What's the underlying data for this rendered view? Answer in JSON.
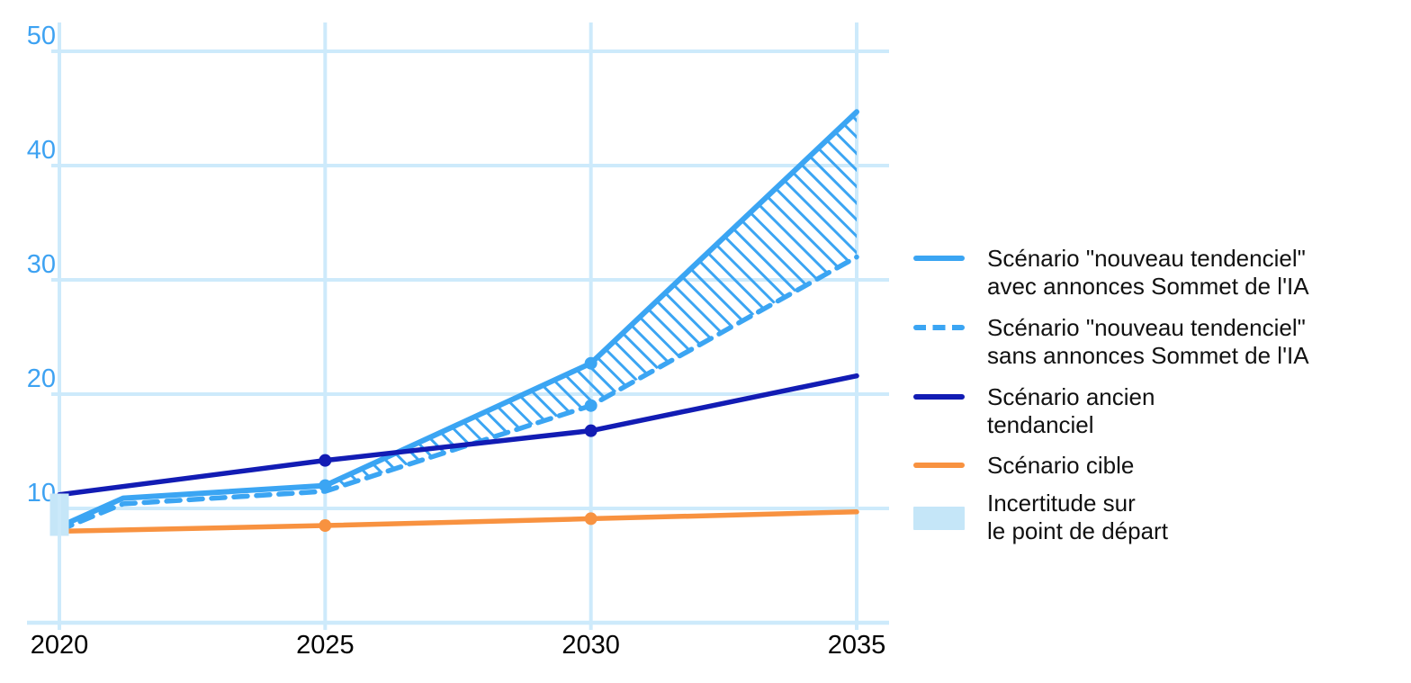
{
  "colors": {
    "light_blue": "#3BA5F3",
    "navy": "#121CB4",
    "orange": "#F89240",
    "grid": "#CDEAFB",
    "pale_fill": "#C5E6F8",
    "y_tick_label": "#3DA2F2",
    "x_tick_label": "#000000",
    "legend_text": "#111111"
  },
  "legend": {
    "items": [
      {
        "key": "nouveau-avec",
        "swatch": "solid",
        "color": "#3BA5F3",
        "line1": "Scénario \"nouveau tendenciel\"",
        "line2": "avec annonces Sommet de l'IA"
      },
      {
        "key": "nouveau-sans",
        "swatch": "dashed",
        "color": "#3BA5F3",
        "line1": "Scénario \"nouveau tendenciel\"",
        "line2": "sans annonces Sommet de l'IA"
      },
      {
        "key": "ancien",
        "swatch": "solid",
        "color": "#121CB4",
        "line1": "Scénario ancien",
        "line2": "tendanciel"
      },
      {
        "key": "cible",
        "swatch": "solid",
        "color": "#F89240",
        "line1": "Scénario cible"
      },
      {
        "key": "incertitude",
        "swatch": "rect",
        "color": "#C5E6F8",
        "line1": "Incertitude sur",
        "line2": "le point de départ"
      }
    ]
  },
  "chart_data": {
    "type": "line",
    "title": "",
    "xlabel": "",
    "ylabel": "",
    "xlim": [
      2020,
      2035
    ],
    "ylim": [
      0,
      50
    ],
    "grid": true,
    "legend_position": "right",
    "x_ticks": [
      2020,
      2025,
      2030,
      2035
    ],
    "x_tick_labels": [
      "2020",
      "2025",
      "2030",
      "2035"
    ],
    "y_ticks": [
      10,
      20,
      30,
      40,
      50
    ],
    "y_tick_labels": [
      "10",
      "20",
      "30",
      "40",
      "50"
    ],
    "series": [
      {
        "name": "Scénario \"nouveau tendenciel\" avec annonces Sommet de l'IA",
        "style": "solid",
        "color": "#3BA5F3",
        "width": 6,
        "x": [
          2020,
          2021.2,
          2025,
          2030,
          2035
        ],
        "y": [
          8.4,
          10.9,
          12,
          22.7,
          44.7
        ],
        "marker_x": [
          2025,
          2030
        ]
      },
      {
        "name": "Scénario \"nouveau tendenciel\" sans annonces Sommet de l'IA",
        "style": "dashed",
        "color": "#3BA5F3",
        "width": 5.5,
        "x": [
          2020,
          2021.2,
          2025,
          2030,
          2035
        ],
        "y": [
          8.1,
          10.4,
          11.5,
          19,
          32
        ],
        "marker_x": [
          2030
        ]
      },
      {
        "name": "Scénario ancien tendanciel",
        "style": "solid",
        "color": "#121CB4",
        "width": 5.5,
        "x": [
          2020,
          2025,
          2030,
          2035
        ],
        "y": [
          11.2,
          14.2,
          16.8,
          21.6
        ],
        "marker_x": [
          2025,
          2030
        ]
      },
      {
        "name": "Scénario cible",
        "style": "solid",
        "color": "#F89240",
        "width": 5.5,
        "x": [
          2020,
          2025,
          2030,
          2035
        ],
        "y": [
          8,
          8.5,
          9.1,
          9.7
        ],
        "marker_x": [
          2025,
          2030
        ]
      }
    ],
    "hatched_band": {
      "between_series": [
        0,
        1
      ],
      "from_x": 2025,
      "to_x": 2035,
      "color": "#3BA5F3"
    },
    "uncertainty_box": {
      "x": 2020,
      "y_min": 7.6,
      "y_max": 11.3,
      "color": "#C5E6F8",
      "label": "Incertitude sur le point de départ"
    }
  }
}
